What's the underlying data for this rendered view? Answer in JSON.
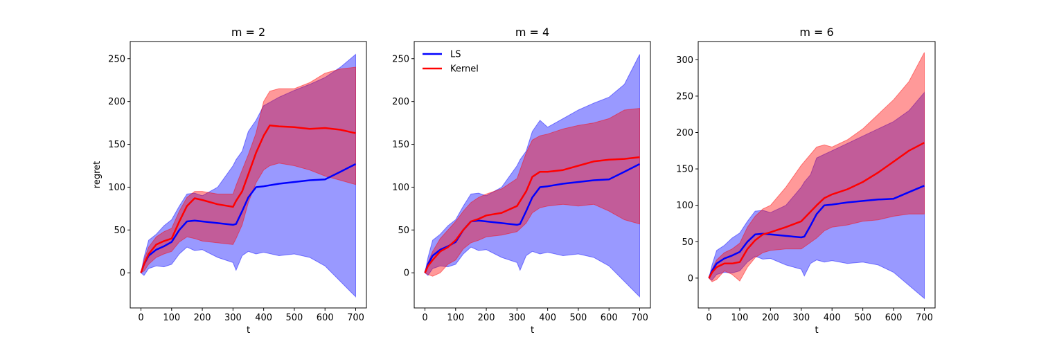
{
  "chart_data": [
    {
      "type": "area",
      "title": "m = 2",
      "xlabel": "t",
      "ylabel": "regret",
      "xlim": [
        -35,
        735
      ],
      "ylim": [
        -41,
        270
      ],
      "xticks": [
        0,
        100,
        200,
        300,
        400,
        500,
        600,
        700
      ],
      "yticks": [
        0,
        50,
        100,
        150,
        200,
        250
      ],
      "legend": false,
      "series": [
        {
          "name": "LS",
          "color": "#0000ff",
          "fill": "#0000ff",
          "x": [
            0,
            10,
            25,
            50,
            75,
            100,
            125,
            150,
            175,
            200,
            250,
            300,
            310,
            330,
            350,
            375,
            400,
            450,
            500,
            550,
            600,
            650,
            700
          ],
          "mean": [
            0,
            10,
            20,
            27,
            31,
            36,
            50,
            60,
            61,
            60,
            58,
            56,
            57,
            72,
            88,
            100,
            101,
            104,
            106,
            108,
            109,
            118,
            127
          ],
          "upper": [
            0,
            18,
            38,
            45,
            55,
            62,
            78,
            92,
            93,
            90,
            100,
            125,
            132,
            142,
            165,
            178,
            195,
            205,
            213,
            220,
            228,
            240,
            255
          ],
          "lower": [
            0,
            -3,
            5,
            8,
            7,
            10,
            22,
            30,
            26,
            27,
            18,
            12,
            3,
            20,
            25,
            22,
            24,
            20,
            22,
            18,
            8,
            -10,
            -28
          ]
        },
        {
          "name": "Kernel",
          "color": "#ff0000",
          "fill": "#ff0000",
          "x": [
            0,
            10,
            25,
            50,
            75,
            100,
            125,
            150,
            175,
            200,
            250,
            300,
            310,
            330,
            350,
            375,
            400,
            420,
            450,
            500,
            550,
            600,
            650,
            700
          ],
          "mean": [
            0,
            10,
            22,
            33,
            37,
            40,
            60,
            78,
            87,
            85,
            80,
            77,
            84,
            95,
            115,
            140,
            160,
            172,
            171,
            170,
            168,
            169,
            167,
            163
          ],
          "upper": [
            0,
            15,
            30,
            42,
            48,
            52,
            72,
            88,
            95,
            95,
            92,
            92,
            102,
            120,
            138,
            163,
            200,
            212,
            215,
            215,
            222,
            233,
            238,
            240
          ],
          "lower": [
            0,
            2,
            10,
            18,
            22,
            25,
            36,
            42,
            40,
            37,
            35,
            33,
            40,
            56,
            82,
            105,
            120,
            125,
            128,
            125,
            120,
            113,
            108,
            103
          ]
        }
      ]
    },
    {
      "type": "area",
      "title": "m = 4",
      "xlabel": "t",
      "ylabel": "",
      "xlim": [
        -35,
        735
      ],
      "ylim": [
        -41,
        270
      ],
      "xticks": [
        0,
        100,
        200,
        300,
        400,
        500,
        600,
        700
      ],
      "yticks": [
        0,
        50,
        100,
        150,
        200,
        250
      ],
      "legend": true,
      "legend_position": "top-left",
      "series": [
        {
          "name": "LS",
          "color": "#0000ff",
          "fill": "#0000ff",
          "x": [
            0,
            10,
            25,
            50,
            75,
            100,
            125,
            150,
            175,
            200,
            250,
            300,
            310,
            330,
            350,
            375,
            400,
            450,
            500,
            550,
            600,
            650,
            700
          ],
          "mean": [
            0,
            10,
            20,
            27,
            31,
            36,
            50,
            60,
            61,
            60,
            58,
            56,
            57,
            72,
            88,
            100,
            101,
            104,
            106,
            108,
            109,
            118,
            127
          ],
          "upper": [
            0,
            18,
            38,
            45,
            55,
            62,
            78,
            92,
            93,
            90,
            100,
            125,
            132,
            142,
            165,
            178,
            170,
            180,
            190,
            198,
            205,
            220,
            255
          ],
          "lower": [
            0,
            -3,
            5,
            8,
            7,
            10,
            22,
            30,
            26,
            27,
            18,
            12,
            3,
            20,
            25,
            22,
            24,
            20,
            22,
            18,
            8,
            -10,
            -28
          ]
        },
        {
          "name": "Kernel",
          "color": "#ff0000",
          "fill": "#ff0000",
          "x": [
            0,
            10,
            25,
            50,
            75,
            100,
            125,
            150,
            175,
            200,
            250,
            300,
            330,
            350,
            375,
            400,
            450,
            500,
            550,
            600,
            650,
            700
          ],
          "mean": [
            0,
            8,
            15,
            25,
            30,
            38,
            50,
            60,
            63,
            67,
            70,
            78,
            95,
            112,
            118,
            118,
            120,
            125,
            130,
            132,
            133,
            135
          ],
          "upper": [
            0,
            12,
            25,
            40,
            50,
            60,
            72,
            82,
            88,
            92,
            98,
            110,
            140,
            155,
            160,
            162,
            168,
            172,
            175,
            180,
            190,
            192
          ],
          "lower": [
            0,
            -2,
            -4,
            0,
            10,
            15,
            28,
            35,
            38,
            42,
            44,
            48,
            58,
            70,
            76,
            78,
            80,
            78,
            80,
            72,
            62,
            57
          ]
        }
      ]
    },
    {
      "type": "area",
      "title": "m = 6",
      "xlabel": "t",
      "ylabel": "",
      "xlim": [
        -35,
        735
      ],
      "ylim": [
        -41,
        325
      ],
      "xticks": [
        0,
        100,
        200,
        300,
        400,
        500,
        600,
        700
      ],
      "yticks": [
        0,
        50,
        100,
        150,
        200,
        250,
        300
      ],
      "legend": false,
      "series": [
        {
          "name": "LS",
          "color": "#0000ff",
          "fill": "#0000ff",
          "x": [
            0,
            10,
            25,
            50,
            75,
            100,
            125,
            150,
            175,
            200,
            250,
            300,
            310,
            330,
            350,
            375,
            400,
            450,
            500,
            550,
            600,
            650,
            700
          ],
          "mean": [
            0,
            10,
            20,
            27,
            31,
            36,
            50,
            60,
            61,
            60,
            58,
            56,
            57,
            72,
            88,
            100,
            101,
            104,
            106,
            108,
            109,
            118,
            127
          ],
          "upper": [
            0,
            18,
            38,
            45,
            55,
            62,
            78,
            92,
            93,
            90,
            100,
            125,
            132,
            142,
            165,
            170,
            175,
            185,
            195,
            205,
            215,
            230,
            255
          ],
          "lower": [
            0,
            -3,
            5,
            8,
            7,
            10,
            22,
            30,
            26,
            27,
            18,
            12,
            3,
            20,
            25,
            22,
            24,
            20,
            22,
            18,
            8,
            -10,
            -28
          ]
        },
        {
          "name": "Kernel",
          "color": "#ff0000",
          "fill": "#ff0000",
          "x": [
            0,
            10,
            25,
            50,
            75,
            100,
            125,
            150,
            175,
            200,
            250,
            300,
            350,
            375,
            400,
            450,
            500,
            550,
            600,
            650,
            700
          ],
          "mean": [
            0,
            8,
            15,
            20,
            20,
            22,
            40,
            52,
            60,
            63,
            70,
            78,
            100,
            110,
            115,
            122,
            132,
            145,
            160,
            175,
            186
          ],
          "upper": [
            0,
            12,
            25,
            35,
            40,
            48,
            70,
            85,
            95,
            100,
            125,
            155,
            180,
            183,
            180,
            190,
            205,
            225,
            245,
            270,
            310
          ],
          "lower": [
            0,
            -5,
            -2,
            10,
            5,
            -4,
            15,
            28,
            35,
            38,
            40,
            40,
            55,
            65,
            70,
            73,
            78,
            80,
            85,
            88,
            88
          ]
        }
      ]
    }
  ]
}
